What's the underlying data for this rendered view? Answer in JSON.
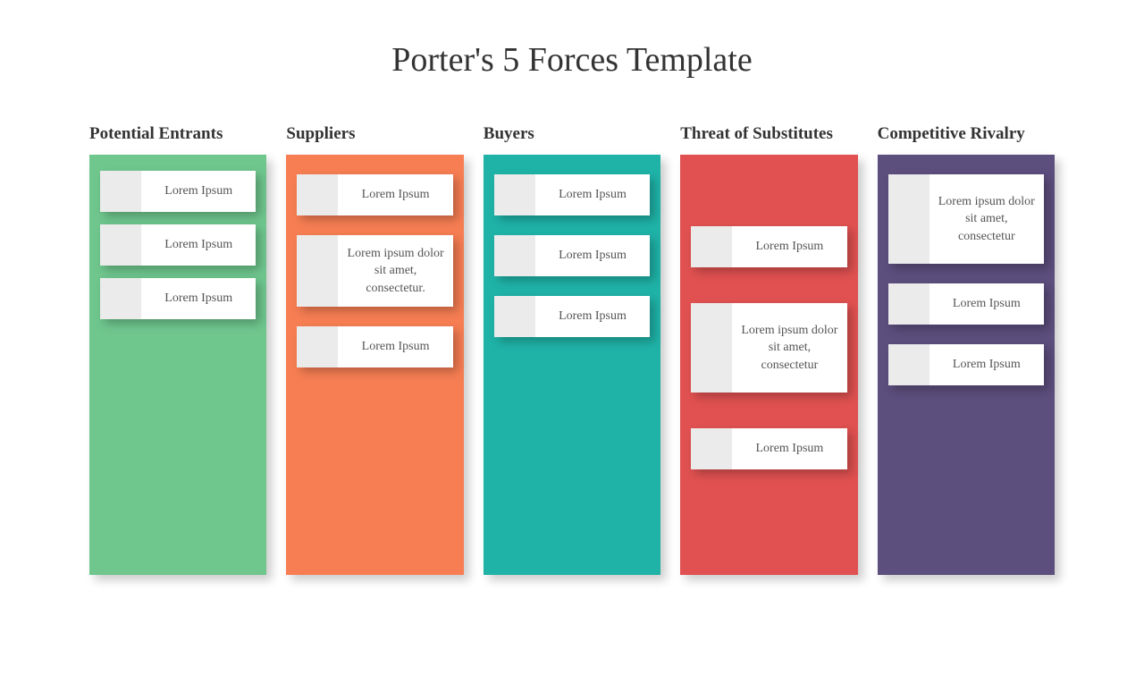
{
  "title": "Porter's 5 Forces Template",
  "title_fontsize": 38,
  "title_color": "#333333",
  "background_color": "#ffffff",
  "card_left_color": "#ebebeb",
  "card_text_color": "#555555",
  "card_fontsize": 14,
  "header_fontsize": 19,
  "header_color": "#333333",
  "column_gap": 22,
  "column_body_height": 470,
  "columns": [
    {
      "label": "Potential Entrants",
      "bg_color": "#6fc78e",
      "gap_variant": "tight",
      "cards": [
        {
          "text": "Lorem Ipsum",
          "size": "normal"
        },
        {
          "text": "Lorem Ipsum",
          "size": "normal"
        },
        {
          "text": "Lorem Ipsum",
          "size": "normal"
        }
      ]
    },
    {
      "label": "Suppliers",
      "bg_color": "#f77e53",
      "gap_variant": "normal",
      "cards": [
        {
          "text": "Lorem Ipsum",
          "size": "normal"
        },
        {
          "text": "Lorem ipsum dolor sit amet, consectetur.",
          "size": "tall"
        },
        {
          "text": "Lorem Ipsum",
          "size": "normal"
        }
      ]
    },
    {
      "label": "Buyers",
      "bg_color": "#1fb3a8",
      "gap_variant": "normal",
      "cards": [
        {
          "text": "Lorem Ipsum",
          "size": "normal"
        },
        {
          "text": "Lorem Ipsum",
          "size": "normal"
        },
        {
          "text": "Lorem Ipsum",
          "size": "normal"
        }
      ]
    },
    {
      "label": "Threat of Substitutes",
      "bg_color": "#e15151",
      "gap_variant": "loose",
      "cards": [
        {
          "text": "Lorem Ipsum",
          "size": "normal"
        },
        {
          "text": "Lorem ipsum dolor sit amet, consectetur",
          "size": "taller"
        },
        {
          "text": "Lorem Ipsum",
          "size": "normal"
        }
      ]
    },
    {
      "label": "Competitive Rivalry",
      "bg_color": "#5c4e7d",
      "gap_variant": "normal",
      "cards": [
        {
          "text": "Lorem ipsum dolor sit amet, consectetur",
          "size": "taller"
        },
        {
          "text": "Lorem Ipsum",
          "size": "normal"
        },
        {
          "text": "Lorem Ipsum",
          "size": "normal"
        }
      ]
    }
  ]
}
